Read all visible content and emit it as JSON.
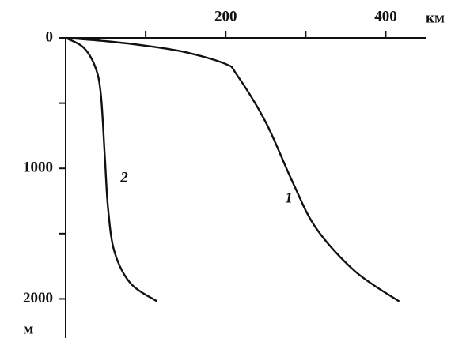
{
  "chart_data": {
    "type": "line",
    "x_label": "км",
    "y_label": "м",
    "xlim": [
      0,
      450
    ],
    "ylim": [
      0,
      2300
    ],
    "xticks": [
      200,
      400
    ],
    "xminorticks": [
      100,
      300
    ],
    "yticks": [
      0,
      1000,
      2000
    ],
    "yminorticks": [
      500,
      1500
    ],
    "y_inverted": true,
    "series": [
      {
        "name": "1",
        "color": "#111111",
        "x": [
          0,
          50,
          100,
          150,
          200,
          214,
          250,
          283,
          313,
          362,
          417
        ],
        "values": [
          0,
          25,
          60,
          110,
          200,
          283,
          645,
          1096,
          1458,
          1790,
          2020
        ]
      },
      {
        "name": "2",
        "color": "#111111",
        "x": [
          0,
          22,
          37,
          44,
          49,
          53,
          61,
          81,
          114
        ],
        "values": [
          0,
          72,
          223,
          434,
          916,
          1307,
          1639,
          1880,
          2018
        ]
      }
    ]
  }
}
